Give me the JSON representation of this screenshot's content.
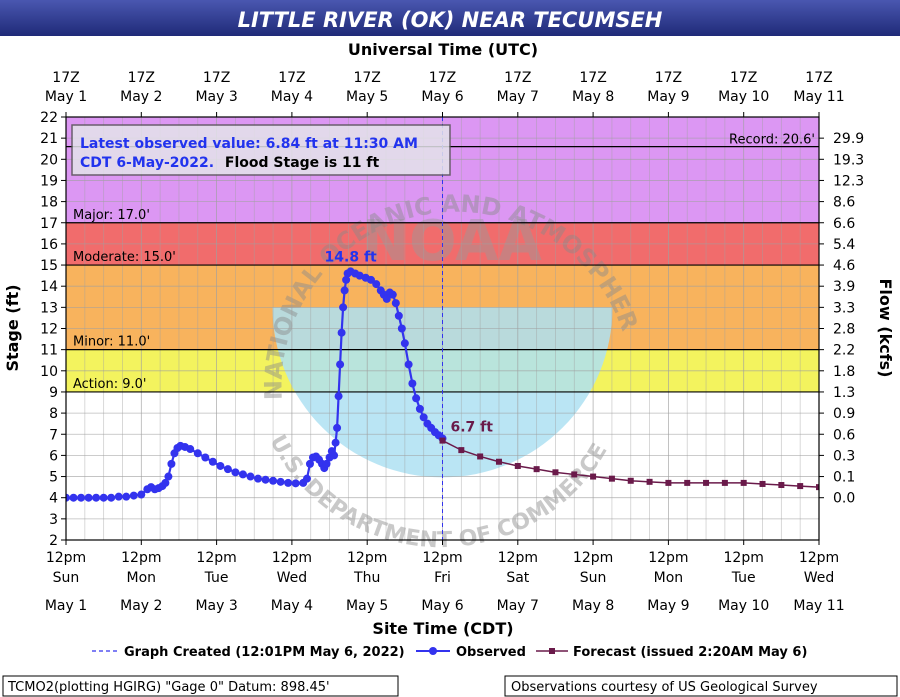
{
  "chart_data": {
    "type": "line",
    "title": "LITTLE RIVER (OK) NEAR TECUMSEH",
    "top_axis_title": "Universal Time (UTC)",
    "bottom_axis_title": "Site Time (CDT)",
    "ylabel": "Stage (ft)",
    "ylabel_right": "Flow (kcfs)",
    "ylim": [
      2,
      22
    ],
    "y_ticks": [
      "2",
      "3",
      "4",
      "5",
      "6",
      "7",
      "8",
      "9",
      "10",
      "11",
      "12",
      "13",
      "14",
      "15",
      "16",
      "17",
      "18",
      "19",
      "20",
      "21",
      "22"
    ],
    "right_ticks": [
      {
        "stage": 21,
        "label": "29.9"
      },
      {
        "stage": 20,
        "label": "19.3"
      },
      {
        "stage": 19,
        "label": "12.3"
      },
      {
        "stage": 18,
        "label": "8.6"
      },
      {
        "stage": 17,
        "label": "6.6"
      },
      {
        "stage": 16,
        "label": "5.4"
      },
      {
        "stage": 15,
        "label": "4.6"
      },
      {
        "stage": 14,
        "label": "3.9"
      },
      {
        "stage": 13,
        "label": "3.3"
      },
      {
        "stage": 12,
        "label": "2.8"
      },
      {
        "stage": 11,
        "label": "2.2"
      },
      {
        "stage": 10,
        "label": "1.8"
      },
      {
        "stage": 9,
        "label": "1.3"
      },
      {
        "stage": 8,
        "label": "0.9"
      },
      {
        "stage": 7,
        "label": "0.6"
      },
      {
        "stage": 6,
        "label": "0.3"
      },
      {
        "stage": 5,
        "label": "0.1"
      },
      {
        "stage": 4,
        "label": "0.0"
      }
    ],
    "x_range_days": [
      0,
      10
    ],
    "utc_ticks": [
      [
        "17Z",
        "May 1"
      ],
      [
        "17Z",
        "May 2"
      ],
      [
        "17Z",
        "May 3"
      ],
      [
        "17Z",
        "May 4"
      ],
      [
        "17Z",
        "May 5"
      ],
      [
        "17Z",
        "May 6"
      ],
      [
        "17Z",
        "May 7"
      ],
      [
        "17Z",
        "May 8"
      ],
      [
        "17Z",
        "May 9"
      ],
      [
        "17Z",
        "May 10"
      ],
      [
        "17Z",
        "May 11"
      ]
    ],
    "local_ticks": [
      [
        "12pm",
        "Sun",
        "May 1"
      ],
      [
        "12pm",
        "Mon",
        "May 2"
      ],
      [
        "12pm",
        "Tue",
        "May 3"
      ],
      [
        "12pm",
        "Wed",
        "May 4"
      ],
      [
        "12pm",
        "Thu",
        "May 5"
      ],
      [
        "12pm",
        "Fri",
        "May 6"
      ],
      [
        "12pm",
        "Sat",
        "May 7"
      ],
      [
        "12pm",
        "Sun",
        "May 8"
      ],
      [
        "12pm",
        "Mon",
        "May 9"
      ],
      [
        "12pm",
        "Tue",
        "May 10"
      ],
      [
        "12pm",
        "Wed",
        "May 11"
      ]
    ],
    "bands": [
      {
        "from": 17,
        "to": 22,
        "color": "#d98ef2"
      },
      {
        "from": 15,
        "to": 17,
        "color": "#f06060"
      },
      {
        "from": 11,
        "to": 15,
        "color": "#f7ad4f"
      },
      {
        "from": 9,
        "to": 11,
        "color": "#f2f250"
      }
    ],
    "stage_labels": [
      {
        "text": "Major: 17.0'",
        "value": 17
      },
      {
        "text": "Moderate: 15.0'",
        "value": 15
      },
      {
        "text": "Minor: 11.0'",
        "value": 11
      },
      {
        "text": "Action: 9.0'",
        "value": 9
      }
    ],
    "record_label": "Record: 20.6'",
    "record_value": 20.6,
    "info_box_line1": "Latest observed value: 6.84 ft at 11:30 AM",
    "info_box_line2a": "CDT 6-May-2022.",
    "info_box_line2b": "Flood Stage is 11 ft",
    "peak_label": "14.8 ft",
    "latest_label": "6.7 ft",
    "created_day": 5.0,
    "series": [
      {
        "name": "Observed",
        "color": "#3333ee",
        "points": [
          [
            0.0,
            4.0
          ],
          [
            0.1,
            4.0
          ],
          [
            0.2,
            4.0
          ],
          [
            0.3,
            4.0
          ],
          [
            0.4,
            4.0
          ],
          [
            0.5,
            4.0
          ],
          [
            0.6,
            4.0
          ],
          [
            0.7,
            4.05
          ],
          [
            0.8,
            4.05
          ],
          [
            0.9,
            4.1
          ],
          [
            1.0,
            4.15
          ],
          [
            1.08,
            4.4
          ],
          [
            1.13,
            4.5
          ],
          [
            1.18,
            4.4
          ],
          [
            1.23,
            4.45
          ],
          [
            1.28,
            4.55
          ],
          [
            1.32,
            4.7
          ],
          [
            1.36,
            5.0
          ],
          [
            1.4,
            5.6
          ],
          [
            1.44,
            6.1
          ],
          [
            1.48,
            6.35
          ],
          [
            1.52,
            6.45
          ],
          [
            1.58,
            6.4
          ],
          [
            1.65,
            6.3
          ],
          [
            1.75,
            6.1
          ],
          [
            1.85,
            5.9
          ],
          [
            1.95,
            5.7
          ],
          [
            2.05,
            5.5
          ],
          [
            2.15,
            5.35
          ],
          [
            2.25,
            5.2
          ],
          [
            2.35,
            5.1
          ],
          [
            2.45,
            5.0
          ],
          [
            2.55,
            4.9
          ],
          [
            2.65,
            4.85
          ],
          [
            2.75,
            4.8
          ],
          [
            2.85,
            4.75
          ],
          [
            2.95,
            4.7
          ],
          [
            3.05,
            4.68
          ],
          [
            3.15,
            4.7
          ],
          [
            3.2,
            4.9
          ],
          [
            3.24,
            5.6
          ],
          [
            3.28,
            5.9
          ],
          [
            3.32,
            5.95
          ],
          [
            3.36,
            5.8
          ],
          [
            3.4,
            5.6
          ],
          [
            3.43,
            5.4
          ],
          [
            3.46,
            5.6
          ],
          [
            3.5,
            5.9
          ],
          [
            3.53,
            6.2
          ],
          [
            3.56,
            6.0
          ],
          [
            3.58,
            6.6
          ],
          [
            3.6,
            7.3
          ],
          [
            3.62,
            8.8
          ],
          [
            3.64,
            10.3
          ],
          [
            3.66,
            11.8
          ],
          [
            3.68,
            13.0
          ],
          [
            3.7,
            13.8
          ],
          [
            3.72,
            14.3
          ],
          [
            3.74,
            14.6
          ],
          [
            3.78,
            14.7
          ],
          [
            3.84,
            14.6
          ],
          [
            3.9,
            14.5
          ],
          [
            3.98,
            14.4
          ],
          [
            4.05,
            14.3
          ],
          [
            4.12,
            14.1
          ],
          [
            4.18,
            13.8
          ],
          [
            4.22,
            13.6
          ],
          [
            4.26,
            13.4
          ],
          [
            4.3,
            13.7
          ],
          [
            4.34,
            13.6
          ],
          [
            4.38,
            13.2
          ],
          [
            4.42,
            12.6
          ],
          [
            4.46,
            12.0
          ],
          [
            4.5,
            11.3
          ],
          [
            4.55,
            10.3
          ],
          [
            4.6,
            9.4
          ],
          [
            4.65,
            8.7
          ],
          [
            4.7,
            8.2
          ],
          [
            4.75,
            7.8
          ],
          [
            4.8,
            7.5
          ],
          [
            4.85,
            7.3
          ],
          [
            4.9,
            7.1
          ],
          [
            4.95,
            6.95
          ],
          [
            5.0,
            6.8
          ]
        ]
      },
      {
        "name": "Forecast (issued 2:20AM May 6)",
        "color": "#6a1a4a",
        "points": [
          [
            5.0,
            6.7
          ],
          [
            5.25,
            6.25
          ],
          [
            5.5,
            5.95
          ],
          [
            5.75,
            5.7
          ],
          [
            6.0,
            5.5
          ],
          [
            6.25,
            5.35
          ],
          [
            6.5,
            5.2
          ],
          [
            6.75,
            5.1
          ],
          [
            7.0,
            5.0
          ],
          [
            7.25,
            4.9
          ],
          [
            7.5,
            4.8
          ],
          [
            7.75,
            4.75
          ],
          [
            8.0,
            4.7
          ],
          [
            8.25,
            4.7
          ],
          [
            8.5,
            4.7
          ],
          [
            8.75,
            4.7
          ],
          [
            9.0,
            4.7
          ],
          [
            9.25,
            4.65
          ],
          [
            9.5,
            4.6
          ],
          [
            9.75,
            4.55
          ],
          [
            10.0,
            4.5
          ],
          [
            10.25,
            4.5
          ],
          [
            10.5,
            4.5
          ]
        ]
      }
    ],
    "legend": {
      "created": "Graph Created (12:01PM May 6, 2022)",
      "observed": "Observed",
      "forecast": "Forecast (issued 2:20AM May 6)"
    },
    "watermark_text": "NATIONAL OCEANIC AND ATMOSPHERIC ADMINISTRATION",
    "watermark_bottom": "U.S. DEPARTMENT OF COMMERCE",
    "watermark_center": "NOAA",
    "footer_left": "TCMO2(plotting HGIRG) \"Gage 0\" Datum: 898.45'",
    "footer_right": "Observations courtesy of US Geological Survey",
    "colors": {
      "title_bar": "#2e3a8c",
      "observed": "#3333ee",
      "forecast": "#6a1a4a",
      "info_text": "#2233ee",
      "peak_text": "#2233ee",
      "latest_text": "#6a1a4a"
    }
  }
}
